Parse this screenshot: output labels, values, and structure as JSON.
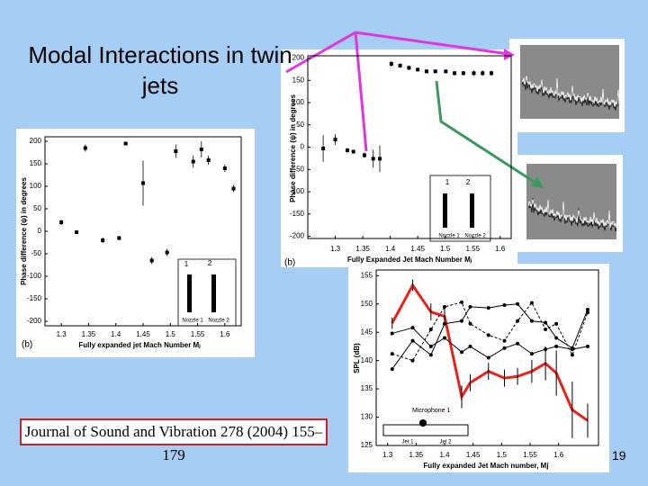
{
  "slide": {
    "title": "Modal Interactions in twin jets",
    "citation": "Journal of Sound and Vibration 278 (2004) 155–179",
    "page_number": "19"
  },
  "chart_data": [
    {
      "type": "scatter",
      "xlabel": "Fully expanded jet Mach Number Mⱼ",
      "ylabel": "Phase difference (ψ) in degrees",
      "annotations": [
        "(b)",
        "1",
        "2",
        "Nozzle 1",
        "Nozzle 2"
      ],
      "x": [
        1.3,
        1.328,
        1.344,
        1.376,
        1.406,
        1.418,
        1.45,
        1.466,
        1.494,
        1.51,
        1.542,
        1.557,
        1.57,
        1.6,
        1.616
      ],
      "values": [
        20,
        -2,
        185,
        -20,
        -15,
        195,
        107,
        -65,
        -47,
        178,
        155,
        182,
        158,
        140,
        95
      ],
      "errors": [
        6,
        4,
        8,
        6,
        5,
        4,
        50,
        8,
        8,
        15,
        14,
        18,
        10,
        8,
        8
      ],
      "color": "#000000",
      "xlim": [
        1.27,
        1.63
      ],
      "xticks": [
        1.3,
        1.35,
        1.4,
        1.45,
        1.5,
        1.55,
        1.6
      ],
      "ylim": [
        -210,
        210
      ],
      "yticks": [
        -200,
        -150,
        -100,
        -50,
        0,
        50,
        100,
        150,
        200
      ]
    },
    {
      "type": "scatter",
      "xlabel": "Fully Expanded Jet Mach Number Mⱼ",
      "ylabel": "Phase difference (ψ) in degrees",
      "annotations": [
        "(b)",
        "1",
        "2",
        "Nozzle 1",
        "Nozzle 2"
      ],
      "x": [
        1.278,
        1.3,
        1.322,
        1.333,
        1.353,
        1.369,
        1.381,
        1.402,
        1.418,
        1.434,
        1.45,
        1.466,
        1.482,
        1.501,
        1.517,
        1.533,
        1.552,
        1.568,
        1.584
      ],
      "values": [
        -3,
        17,
        -7,
        -10,
        -18,
        -26,
        -26,
        187,
        183,
        178,
        174,
        170,
        170,
        170,
        166,
        166,
        166,
        166,
        166
      ],
      "errors": [
        30,
        12,
        5,
        4,
        6,
        20,
        30,
        6,
        5,
        5,
        4,
        4,
        4,
        4,
        5,
        5,
        6,
        6,
        6
      ],
      "color": "#000000",
      "xlim": [
        1.25,
        1.62
      ],
      "xticks": [
        1.3,
        1.35,
        1.4,
        1.45,
        1.5,
        1.55,
        1.6
      ],
      "ylim": [
        -205,
        205
      ],
      "yticks": [
        -200,
        -150,
        -100,
        -50,
        0,
        50,
        100,
        150,
        200
      ]
    },
    {
      "type": "line",
      "xlabel": "Fully expanded Jet Mach number, Mj",
      "ylabel": "SPL (dB)",
      "annotations": [
        "Microphone 1",
        "Jet 1",
        "Jet 2"
      ],
      "x": [
        1.308,
        1.344,
        1.376,
        1.4,
        1.43,
        1.445,
        1.477,
        1.505,
        1.528,
        1.553,
        1.577,
        1.596,
        1.624,
        1.651
      ],
      "series": [
        {
          "color": "#e8231c",
          "values": [
            146.6,
            153.3,
            148.6,
            147.8,
            133.6,
            136.1,
            138.1,
            136.9,
            137.2,
            138.1,
            139.5,
            137.8,
            131.3,
            129.4
          ],
          "errors": [
            1,
            1,
            1.5,
            1.5,
            2,
            1.5,
            1.5,
            1.5,
            1.5,
            2,
            3,
            4,
            5,
            3
          ]
        },
        {
          "color": "#000000",
          "values": [
            138.5,
            143.5,
            141,
            146.5,
            147,
            149.5,
            149.3,
            149.8,
            150,
            147,
            146.7,
            144,
            142.2,
            149
          ]
        },
        {
          "color": "#000000",
          "values": [
            141.2,
            140,
            145.5,
            149.5,
            150.3,
            146.5,
            144.5,
            143.5,
            147,
            150.2,
            145.5,
            146.5,
            141,
            148.5
          ]
        },
        {
          "color": "#000000",
          "values": [
            144.8,
            145.8,
            142.5,
            144,
            141.5,
            142.5,
            140.5,
            142.2,
            143,
            141.2,
            142,
            142.5,
            142,
            142.5
          ]
        }
      ],
      "xlim": [
        1.28,
        1.67
      ],
      "xticks": [
        1.3,
        1.35,
        1.4,
        1.45,
        1.5,
        1.55,
        1.6
      ],
      "ylim": [
        125,
        156
      ],
      "yticks": [
        125,
        130,
        135,
        140,
        145,
        150,
        155
      ]
    }
  ]
}
